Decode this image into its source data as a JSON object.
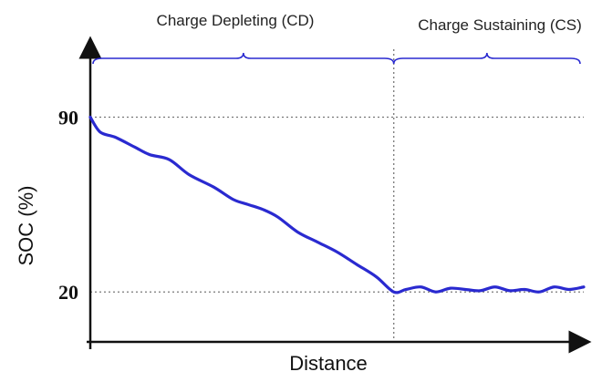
{
  "chart_data": {
    "type": "line",
    "title": "",
    "xlabel": "Distance",
    "ylabel": "SOC (%)",
    "yticks": [
      90,
      20
    ],
    "ylim": [
      0,
      115
    ],
    "xlim": [
      0,
      100
    ],
    "grid": false,
    "reference_lines": [
      {
        "axis": "y",
        "value": 90,
        "style": "dotted"
      },
      {
        "axis": "y",
        "value": 20,
        "style": "dotted"
      },
      {
        "axis": "x",
        "value": 61.5,
        "style": "dotted"
      }
    ],
    "phases": [
      {
        "label": "Charge Depleting (CD)",
        "x_start": 0,
        "x_end": 61.5
      },
      {
        "label": "Charge Sustaining (CS)",
        "x_start": 61.5,
        "x_end": 100
      }
    ],
    "series": [
      {
        "color": "#2a2ad0",
        "x": [
          0,
          2,
          5,
          9,
          12,
          16,
          20,
          25,
          29,
          32,
          35,
          38,
          42,
          46,
          50,
          54,
          58,
          61.5,
          64,
          67,
          70,
          73,
          76,
          79,
          82,
          85,
          88,
          91,
          94,
          97,
          100
        ],
        "y": [
          90,
          84,
          82,
          78,
          75,
          73,
          67,
          62,
          57,
          55,
          53,
          50,
          44,
          40,
          36,
          31,
          26,
          20,
          21,
          22,
          20,
          21.5,
          21,
          20.5,
          22,
          20.5,
          21,
          20,
          22,
          21,
          22
        ]
      }
    ]
  }
}
